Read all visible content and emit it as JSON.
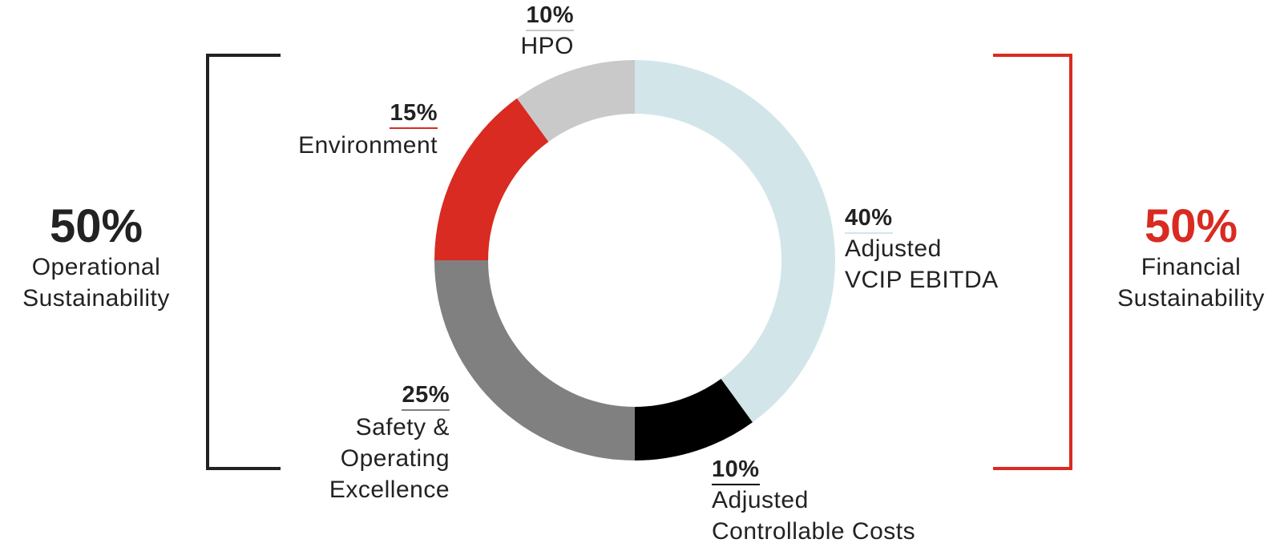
{
  "chart_data": {
    "type": "pie",
    "donut": true,
    "categories": [
      "Adjusted VCIP EBITDA",
      "Adjusted Controllable Costs",
      "Safety & Operating Excellence",
      "Environment",
      "HPO"
    ],
    "values": [
      40,
      10,
      25,
      15,
      10
    ],
    "colors": [
      "#d2e6ea",
      "#000000",
      "#808080",
      "#d92b21",
      "#c9c9c9"
    ],
    "slices": [
      {
        "percent": "40%",
        "label_lines": [
          "Adjusted",
          "VCIP EBITDA"
        ],
        "underline_color": "#d2e6ea"
      },
      {
        "percent": "10%",
        "label_lines": [
          "Adjusted",
          "Controllable Costs"
        ],
        "underline_color": "#000000"
      },
      {
        "percent": "25%",
        "label_lines": [
          "Safety &",
          "Operating",
          "Excellence"
        ],
        "underline_color": "#808080"
      },
      {
        "percent": "15%",
        "label_lines": [
          "Environment"
        ],
        "underline_color": "#d92b21"
      },
      {
        "percent": "10%",
        "label_lines": [
          "HPO"
        ],
        "underline_color": "#c9c9c9"
      }
    ],
    "groups": [
      {
        "percent": "50%",
        "label_lines": [
          "Operational",
          "Sustainability"
        ],
        "color": "#222222"
      },
      {
        "percent": "50%",
        "label_lines": [
          "Financial",
          "Sustainability"
        ],
        "color": "#d92b21"
      }
    ]
  }
}
